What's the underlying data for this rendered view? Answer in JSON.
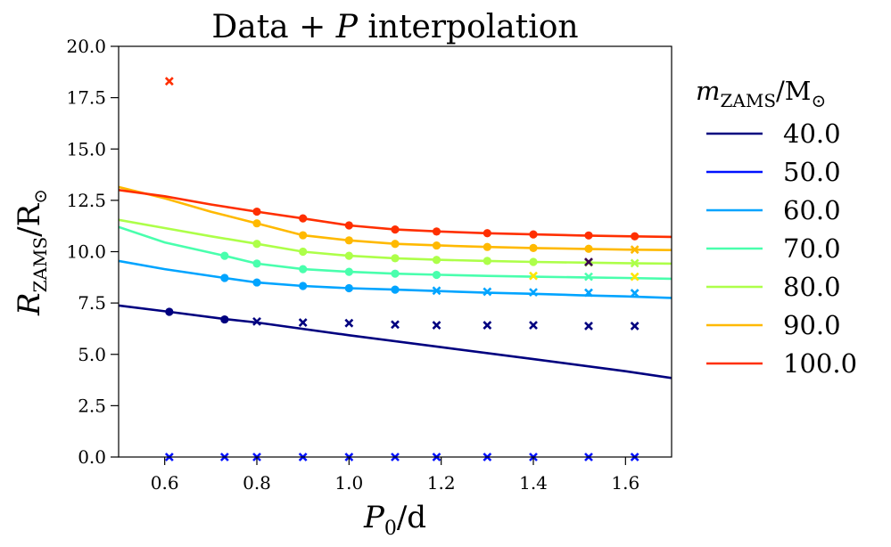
{
  "chart_data": {
    "type": "line",
    "title": "Data + P interpolation",
    "title_parts": {
      "prefix": "Data + ",
      "var": "P",
      "suffix": " interpolation"
    },
    "xlabel": "P0/d",
    "xlabel_parts": {
      "var": "P",
      "sub": "0",
      "suffix": "/d"
    },
    "ylabel": "RZAMS/R⊙",
    "ylabel_parts": {
      "var": "R",
      "sub": "ZAMS",
      "suffix": "/R",
      "suffix_sub": "⊙"
    },
    "xlim": [
      0.5,
      1.7
    ],
    "ylim": [
      0.0,
      20.0
    ],
    "x_ticks": [
      "0.6",
      "0.8",
      "1.0",
      "1.2",
      "1.4",
      "1.6"
    ],
    "y_ticks": [
      "0.0",
      "2.5",
      "5.0",
      "7.5",
      "10.0",
      "12.5",
      "15.0",
      "17.5",
      "20.0"
    ],
    "grid": false,
    "legend": {
      "placement": "outside right",
      "title": "mZAMS/M⊙",
      "title_parts": {
        "var": "m",
        "sub": "ZAMS",
        "suffix": "/M",
        "suffix_sub": "⊙"
      },
      "entries": [
        "40.0",
        "50.0",
        "60.0",
        "70.0",
        "80.0",
        "90.0",
        "100.0"
      ]
    },
    "series": [
      {
        "name": "40.0",
        "color": "#00007f",
        "line": {
          "x": [
            0.5,
            0.61,
            0.73,
            0.8,
            1.0,
            1.2,
            1.4,
            1.6,
            1.7
          ],
          "y": [
            7.38,
            7.07,
            6.72,
            6.55,
            5.93,
            5.35,
            4.77,
            4.18,
            3.85
          ]
        },
        "points": {
          "x": [
            0.61,
            0.73
          ],
          "y": [
            7.07,
            6.7
          ]
        },
        "crosses": {
          "x": [
            0.8,
            0.9,
            1.0,
            1.1,
            1.19,
            1.3,
            1.4,
            1.52,
            1.62
          ],
          "y": [
            6.6,
            6.55,
            6.52,
            6.45,
            6.42,
            6.42,
            6.42,
            6.38,
            6.38
          ]
        }
      },
      {
        "name": "50.0",
        "color": "#0010ff",
        "line": {
          "x": [],
          "y": []
        },
        "points": {
          "x": [],
          "y": []
        },
        "crosses": {
          "x": [
            0.61,
            0.73,
            0.8,
            0.9,
            1.0,
            1.1,
            1.19,
            1.3,
            1.4,
            1.52,
            1.62
          ],
          "y": [
            0,
            0,
            0,
            0,
            0,
            0,
            0,
            0,
            0,
            0,
            0
          ]
        }
      },
      {
        "name": "60.0",
        "color": "#00a4ff",
        "line": {
          "x": [
            0.5,
            0.6,
            0.73,
            0.8,
            0.9,
            1.0,
            1.1,
            1.2,
            1.3,
            1.4,
            1.5,
            1.6,
            1.7
          ],
          "y": [
            9.55,
            9.15,
            8.72,
            8.5,
            8.33,
            8.22,
            8.15,
            8.08,
            8.0,
            7.95,
            7.88,
            7.82,
            7.75
          ]
        },
        "points": {
          "x": [
            0.73,
            0.8,
            0.9,
            1.0,
            1.1
          ],
          "y": [
            8.72,
            8.5,
            8.33,
            8.22,
            8.15
          ]
        },
        "crosses": {
          "x": [
            1.19,
            1.3,
            1.4,
            1.52,
            1.62
          ],
          "y": [
            8.1,
            8.05,
            8.02,
            8.0,
            7.98
          ]
        }
      },
      {
        "name": "70.0",
        "color": "#49ffad",
        "line": {
          "x": [
            0.5,
            0.6,
            0.73,
            0.8,
            0.9,
            1.0,
            1.1,
            1.2,
            1.3,
            1.4,
            1.5,
            1.6,
            1.7
          ],
          "y": [
            11.2,
            10.45,
            9.8,
            9.42,
            9.15,
            9.02,
            8.93,
            8.87,
            8.82,
            8.78,
            8.75,
            8.72,
            8.68
          ]
        },
        "points": {
          "x": [
            0.73,
            0.8,
            0.9,
            1.0,
            1.1,
            1.19
          ],
          "y": [
            9.8,
            9.42,
            9.15,
            9.02,
            8.93,
            8.87
          ]
        },
        "crosses": {
          "x": [
            1.52
          ],
          "y": [
            8.78
          ]
        }
      },
      {
        "name": "80.0",
        "color": "#adff49",
        "line": {
          "x": [
            0.5,
            0.6,
            0.7,
            0.8,
            0.9,
            1.0,
            1.1,
            1.2,
            1.3,
            1.4,
            1.5,
            1.6,
            1.7
          ],
          "y": [
            11.55,
            11.15,
            10.75,
            10.38,
            10.0,
            9.8,
            9.68,
            9.6,
            9.55,
            9.5,
            9.47,
            9.44,
            9.42
          ]
        },
        "points": {
          "x": [
            0.8,
            0.9,
            1.0,
            1.1,
            1.19,
            1.3,
            1.4
          ],
          "y": [
            10.38,
            10.0,
            9.8,
            9.68,
            9.6,
            9.55,
            9.5
          ]
        },
        "crosses": {
          "x": [
            1.52,
            1.62
          ],
          "y": [
            9.47,
            9.44
          ]
        }
      },
      {
        "name": "90.0",
        "color": "#ffb900",
        "line": {
          "x": [
            0.5,
            0.6,
            0.7,
            0.8,
            0.9,
            1.0,
            1.1,
            1.2,
            1.3,
            1.4,
            1.5,
            1.6,
            1.7
          ],
          "y": [
            13.15,
            12.6,
            11.95,
            11.38,
            10.8,
            10.55,
            10.38,
            10.3,
            10.23,
            10.18,
            10.14,
            10.1,
            10.08
          ]
        },
        "points": {
          "x": [
            0.8,
            0.9,
            1.0,
            1.1,
            1.19,
            1.3,
            1.4,
            1.52
          ],
          "y": [
            11.38,
            10.8,
            10.55,
            10.38,
            10.3,
            10.23,
            10.18,
            10.14
          ]
        },
        "crosses": {
          "x": [
            1.62
          ],
          "y": [
            10.1
          ]
        }
      },
      {
        "name": "100.0",
        "color": "#ff2f00",
        "line": {
          "x": [
            0.5,
            0.6,
            0.7,
            0.8,
            0.9,
            1.0,
            1.1,
            1.2,
            1.3,
            1.4,
            1.5,
            1.6,
            1.7
          ],
          "y": [
            13.0,
            12.7,
            12.3,
            11.95,
            11.62,
            11.28,
            11.08,
            10.98,
            10.9,
            10.84,
            10.79,
            10.75,
            10.72
          ]
        },
        "points": {
          "x": [
            0.8,
            0.9,
            1.0,
            1.1,
            1.19,
            1.3,
            1.4,
            1.52,
            1.62
          ],
          "y": [
            11.95,
            11.62,
            11.28,
            11.08,
            10.98,
            10.9,
            10.84,
            10.79,
            10.75
          ]
        },
        "crosses": {
          "x": [
            0.61
          ],
          "y": [
            18.3
          ]
        }
      }
    ],
    "extra_marks": [
      {
        "marker": "x",
        "color": "#ffe500",
        "x": [
          1.4,
          1.62
        ],
        "y": [
          8.82,
          8.78
        ]
      },
      {
        "marker": "x",
        "color": "#3a0050",
        "x": [
          1.52
        ],
        "y": [
          9.5
        ]
      }
    ]
  }
}
